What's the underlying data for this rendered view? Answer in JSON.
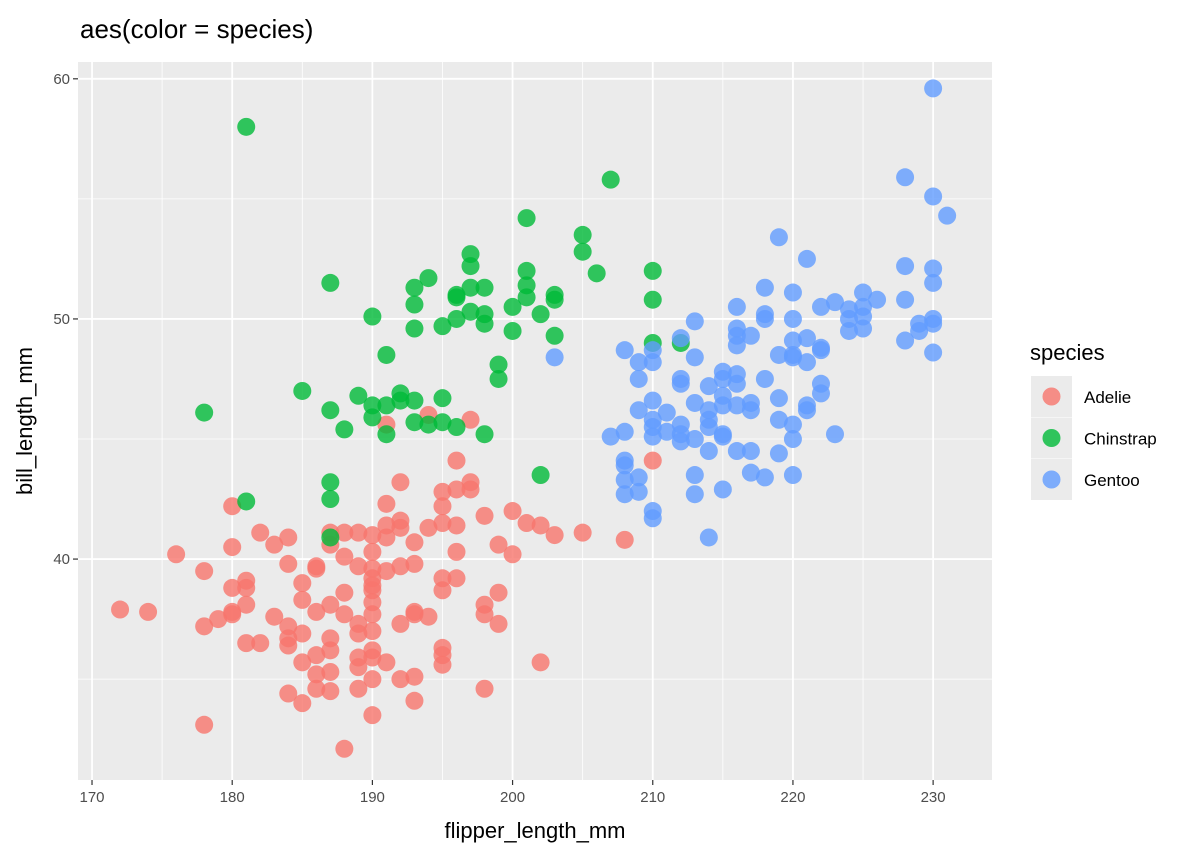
{
  "chart_data": {
    "type": "scatter",
    "title": "aes(color = species)",
    "xlabel": "flipper_length_mm",
    "ylabel": "bill_length_mm",
    "xlim": [
      169,
      234.2
    ],
    "ylim": [
      30.8,
      60.7
    ],
    "xticks": [
      170,
      180,
      190,
      200,
      210,
      220,
      230
    ],
    "yticks": [
      40,
      50,
      60
    ],
    "grid": true,
    "legend": {
      "title": "species",
      "placement": "right"
    },
    "series": [
      {
        "name": "Adelie",
        "color": "#F8766D",
        "points": [
          [
            172,
            37.9
          ],
          [
            174,
            37.8
          ],
          [
            176,
            40.2
          ],
          [
            178,
            39.5
          ],
          [
            178,
            37.2
          ],
          [
            178,
            33.1
          ],
          [
            179,
            37.5
          ],
          [
            180,
            42.2
          ],
          [
            180,
            40.5
          ],
          [
            180,
            38.8
          ],
          [
            180,
            37.8
          ],
          [
            180,
            37.7
          ],
          [
            181,
            39.1
          ],
          [
            181,
            38.8
          ],
          [
            181,
            38.1
          ],
          [
            181,
            36.5
          ],
          [
            182,
            41.1
          ],
          [
            182,
            36.5
          ],
          [
            183,
            40.6
          ],
          [
            183,
            37.6
          ],
          [
            184,
            40.9
          ],
          [
            184,
            39.8
          ],
          [
            184,
            37.2
          ],
          [
            184,
            36.7
          ],
          [
            184,
            36.4
          ],
          [
            184,
            34.4
          ],
          [
            185,
            39.0
          ],
          [
            185,
            38.3
          ],
          [
            185,
            36.9
          ],
          [
            185,
            35.7
          ],
          [
            185,
            34.0
          ],
          [
            186,
            39.7
          ],
          [
            186,
            39.6
          ],
          [
            186,
            37.8
          ],
          [
            186,
            36.0
          ],
          [
            186,
            35.2
          ],
          [
            186,
            34.6
          ],
          [
            187,
            41.1
          ],
          [
            187,
            40.6
          ],
          [
            187,
            38.1
          ],
          [
            187,
            36.7
          ],
          [
            187,
            36.2
          ],
          [
            187,
            35.3
          ],
          [
            187,
            34.5
          ],
          [
            188,
            41.1
          ],
          [
            188,
            40.1
          ],
          [
            188,
            38.6
          ],
          [
            188,
            37.7
          ],
          [
            188,
            32.1
          ],
          [
            189,
            41.1
          ],
          [
            189,
            39.7
          ],
          [
            189,
            37.3
          ],
          [
            189,
            36.9
          ],
          [
            189,
            35.9
          ],
          [
            189,
            35.5
          ],
          [
            189,
            34.6
          ],
          [
            190,
            41.0
          ],
          [
            190,
            40.3
          ],
          [
            190,
            39.6
          ],
          [
            190,
            39.2
          ],
          [
            190,
            38.9
          ],
          [
            190,
            38.7
          ],
          [
            190,
            38.2
          ],
          [
            190,
            37.7
          ],
          [
            190,
            37.0
          ],
          [
            190,
            36.2
          ],
          [
            190,
            35.9
          ],
          [
            190,
            35.0
          ],
          [
            190,
            33.5
          ],
          [
            191,
            42.3
          ],
          [
            191,
            41.4
          ],
          [
            191,
            40.9
          ],
          [
            191,
            39.5
          ],
          [
            191,
            35.7
          ],
          [
            191,
            45.6
          ],
          [
            192,
            43.2
          ],
          [
            192,
            41.6
          ],
          [
            192,
            41.3
          ],
          [
            192,
            39.7
          ],
          [
            192,
            37.3
          ],
          [
            192,
            35.0
          ],
          [
            193,
            40.7
          ],
          [
            193,
            39.8
          ],
          [
            193,
            37.8
          ],
          [
            193,
            37.7
          ],
          [
            193,
            35.1
          ],
          [
            193,
            34.1
          ],
          [
            194,
            41.3
          ],
          [
            194,
            37.6
          ],
          [
            194,
            46.0
          ],
          [
            195,
            42.8
          ],
          [
            195,
            42.2
          ],
          [
            195,
            41.5
          ],
          [
            195,
            39.2
          ],
          [
            195,
            38.7
          ],
          [
            195,
            36.3
          ],
          [
            195,
            35.6
          ],
          [
            195,
            36.0
          ],
          [
            196,
            44.1
          ],
          [
            196,
            42.9
          ],
          [
            196,
            41.4
          ],
          [
            196,
            40.3
          ],
          [
            196,
            39.2
          ],
          [
            197,
            43.2
          ],
          [
            197,
            42.9
          ],
          [
            197,
            45.8
          ],
          [
            198,
            41.8
          ],
          [
            198,
            38.1
          ],
          [
            198,
            37.7
          ],
          [
            198,
            34.6
          ],
          [
            199,
            40.6
          ],
          [
            199,
            38.6
          ],
          [
            199,
            37.3
          ],
          [
            200,
            42.0
          ],
          [
            200,
            40.2
          ],
          [
            201,
            41.5
          ],
          [
            202,
            41.4
          ],
          [
            202,
            35.7
          ],
          [
            203,
            41.0
          ],
          [
            205,
            41.1
          ],
          [
            208,
            40.8
          ],
          [
            210,
            44.1
          ]
        ]
      },
      {
        "name": "Chinstrap",
        "color": "#00BA38",
        "points": [
          [
            178,
            46.1
          ],
          [
            181,
            58.0
          ],
          [
            181,
            42.4
          ],
          [
            185,
            47.0
          ],
          [
            187,
            51.5
          ],
          [
            187,
            46.2
          ],
          [
            187,
            43.2
          ],
          [
            187,
            42.5
          ],
          [
            187,
            40.9
          ],
          [
            188,
            45.4
          ],
          [
            189,
            46.8
          ],
          [
            190,
            50.1
          ],
          [
            190,
            46.4
          ],
          [
            190,
            45.9
          ],
          [
            191,
            48.5
          ],
          [
            191,
            46.4
          ],
          [
            191,
            45.2
          ],
          [
            192,
            46.9
          ],
          [
            192,
            46.6
          ],
          [
            193,
            51.3
          ],
          [
            193,
            50.6
          ],
          [
            193,
            49.6
          ],
          [
            193,
            46.6
          ],
          [
            193,
            45.7
          ],
          [
            194,
            51.7
          ],
          [
            194,
            45.6
          ],
          [
            195,
            49.7
          ],
          [
            195,
            46.7
          ],
          [
            195,
            45.7
          ],
          [
            196,
            51.0
          ],
          [
            196,
            50.9
          ],
          [
            196,
            50.0
          ],
          [
            196,
            45.5
          ],
          [
            197,
            52.7
          ],
          [
            197,
            52.2
          ],
          [
            197,
            51.3
          ],
          [
            197,
            50.3
          ],
          [
            198,
            51.3
          ],
          [
            198,
            50.2
          ],
          [
            198,
            49.8
          ],
          [
            198,
            45.2
          ],
          [
            199,
            48.1
          ],
          [
            199,
            47.5
          ],
          [
            200,
            50.5
          ],
          [
            200,
            49.5
          ],
          [
            201,
            54.2
          ],
          [
            201,
            52.0
          ],
          [
            201,
            51.4
          ],
          [
            201,
            50.9
          ],
          [
            202,
            50.2
          ],
          [
            202,
            43.5
          ],
          [
            203,
            51.0
          ],
          [
            203,
            50.8
          ],
          [
            203,
            49.3
          ],
          [
            205,
            53.5
          ],
          [
            205,
            52.8
          ],
          [
            206,
            51.9
          ],
          [
            207,
            55.8
          ],
          [
            210,
            52.0
          ],
          [
            210,
            50.8
          ],
          [
            210,
            49.0
          ],
          [
            212,
            49.0
          ]
        ]
      },
      {
        "name": "Gentoo",
        "color": "#619CFF",
        "points": [
          [
            230,
            59.6
          ],
          [
            228,
            55.9
          ],
          [
            230,
            55.1
          ],
          [
            231,
            54.3
          ],
          [
            219,
            53.4
          ],
          [
            221,
            52.5
          ],
          [
            228,
            52.2
          ],
          [
            230,
            52.1
          ],
          [
            230,
            51.5
          ],
          [
            218,
            51.3
          ],
          [
            220,
            51.1
          ],
          [
            225,
            51.1
          ],
          [
            226,
            50.8
          ],
          [
            228,
            50.8
          ],
          [
            223,
            50.7
          ],
          [
            222,
            50.5
          ],
          [
            216,
            50.5
          ],
          [
            218,
            50.2
          ],
          [
            218,
            50.0
          ],
          [
            220,
            50.0
          ],
          [
            224,
            50.4
          ],
          [
            224,
            50.0
          ],
          [
            225,
            50.5
          ],
          [
            225,
            50.1
          ],
          [
            224,
            49.5
          ],
          [
            225,
            49.6
          ],
          [
            229,
            49.8
          ],
          [
            230,
            50.0
          ],
          [
            230,
            49.8
          ],
          [
            229,
            49.5
          ],
          [
            228,
            49.1
          ],
          [
            230,
            48.6
          ],
          [
            213,
            49.9
          ],
          [
            216,
            49.6
          ],
          [
            216,
            49.3
          ],
          [
            216,
            48.9
          ],
          [
            217,
            49.3
          ],
          [
            208,
            48.7
          ],
          [
            210,
            48.7
          ],
          [
            212,
            49.2
          ],
          [
            209,
            48.2
          ],
          [
            210,
            48.2
          ],
          [
            209,
            47.5
          ],
          [
            213,
            48.4
          ],
          [
            212,
            47.5
          ],
          [
            212,
            47.3
          ],
          [
            220,
            49.1
          ],
          [
            221,
            49.2
          ],
          [
            219,
            48.5
          ],
          [
            220,
            48.5
          ],
          [
            220,
            48.4
          ],
          [
            221,
            48.2
          ],
          [
            222,
            48.8
          ],
          [
            222,
            48.7
          ],
          [
            214,
            47.2
          ],
          [
            215,
            47.8
          ],
          [
            215,
            47.5
          ],
          [
            216,
            47.7
          ],
          [
            216,
            47.3
          ],
          [
            218,
            47.5
          ],
          [
            222,
            47.3
          ],
          [
            222,
            46.9
          ],
          [
            215,
            46.8
          ],
          [
            215,
            46.4
          ],
          [
            213,
            46.5
          ],
          [
            214,
            46.2
          ],
          [
            216,
            46.4
          ],
          [
            217,
            46.5
          ],
          [
            217,
            46.2
          ],
          [
            219,
            46.7
          ],
          [
            221,
            46.4
          ],
          [
            221,
            46.2
          ],
          [
            209,
            46.2
          ],
          [
            210,
            46.6
          ],
          [
            210,
            45.8
          ],
          [
            210,
            45.5
          ],
          [
            210,
            45.1
          ],
          [
            211,
            46.1
          ],
          [
            211,
            45.3
          ],
          [
            212,
            45.6
          ],
          [
            212,
            45.2
          ],
          [
            212,
            44.9
          ],
          [
            213,
            45.0
          ],
          [
            214,
            45.8
          ],
          [
            214,
            45.5
          ],
          [
            215,
            45.2
          ],
          [
            215,
            45.1
          ],
          [
            214,
            44.5
          ],
          [
            216,
            44.5
          ],
          [
            217,
            44.5
          ],
          [
            219,
            45.8
          ],
          [
            219,
            44.4
          ],
          [
            220,
            45.6
          ],
          [
            220,
            45.0
          ],
          [
            223,
            45.2
          ],
          [
            207,
            45.1
          ],
          [
            208,
            45.3
          ],
          [
            208,
            44.1
          ],
          [
            208,
            43.9
          ],
          [
            208,
            43.3
          ],
          [
            208,
            42.7
          ],
          [
            209,
            43.4
          ],
          [
            209,
            42.8
          ],
          [
            210,
            42.0
          ],
          [
            210,
            41.7
          ],
          [
            213,
            43.5
          ],
          [
            213,
            42.7
          ],
          [
            215,
            42.9
          ],
          [
            217,
            43.6
          ],
          [
            218,
            43.4
          ],
          [
            220,
            43.5
          ],
          [
            214,
            40.9
          ],
          [
            203,
            48.4
          ]
        ]
      }
    ]
  }
}
